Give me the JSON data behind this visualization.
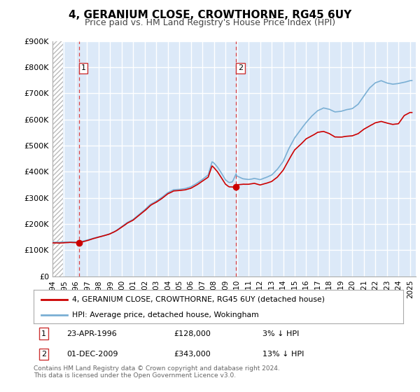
{
  "title": "4, GERANIUM CLOSE, CROWTHORNE, RG45 6UY",
  "subtitle": "Price paid vs. HM Land Registry's House Price Index (HPI)",
  "legend_line1": "4, GERANIUM CLOSE, CROWTHORNE, RG45 6UY (detached house)",
  "legend_line2": "HPI: Average price, detached house, Wokingham",
  "footnote": "Contains HM Land Registry data © Crown copyright and database right 2024.\nThis data is licensed under the Open Government Licence v3.0.",
  "marker1_date": "23-APR-1996",
  "marker1_price": 128000,
  "marker1_label": "3% ↓ HPI",
  "marker2_date": "01-DEC-2009",
  "marker2_price": 343000,
  "marker2_label": "13% ↓ HPI",
  "marker1_x": 1996.31,
  "marker2_x": 2009.92,
  "ylim": [
    0,
    900000
  ],
  "xlim_start": 1994.0,
  "xlim_end": 2025.5,
  "background_color": "#dce9f8",
  "hatch_color": "#bbbbbb",
  "grid_color": "#ffffff",
  "hpi_color": "#7aafd4",
  "price_color": "#cc0000",
  "xticks": [
    1994,
    1995,
    1996,
    1997,
    1998,
    1999,
    2000,
    2001,
    2002,
    2003,
    2004,
    2005,
    2006,
    2007,
    2008,
    2009,
    2010,
    2011,
    2012,
    2013,
    2014,
    2015,
    2016,
    2017,
    2018,
    2019,
    2020,
    2021,
    2022,
    2023,
    2024,
    2025
  ]
}
